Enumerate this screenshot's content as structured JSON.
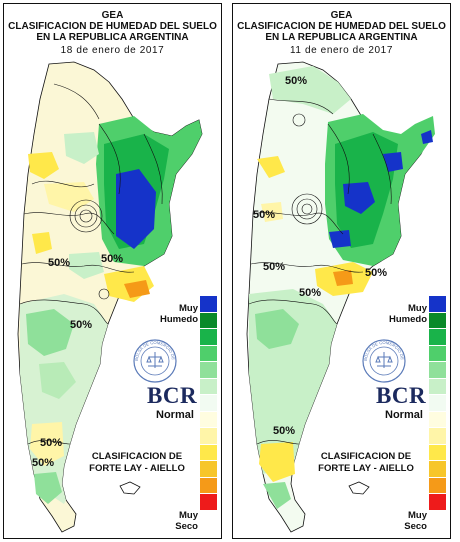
{
  "panels": [
    {
      "title_line1": "GEA",
      "title_line2": "CLASIFICACION DE HUMEDAD DEL SUELO",
      "title_line3": "EN LA REPUBLICA ARGENTINA",
      "date": "18 de enero de 2017",
      "contour_labels": [
        "50%",
        "50%",
        "50%",
        "50%",
        "50%"
      ],
      "legend_top": "Muy\nHumedo",
      "legend_mid": "Normal",
      "legend_bottom": "Muy\nSeco",
      "brand": "BCR",
      "seal_text": "BOLSA DE COMERCIO DE ROSARIO",
      "classification": "CLASIFICACION DE\nFORTE LAY - AIELLO"
    },
    {
      "title_line1": "GEA",
      "title_line2": "CLASIFICACION DE HUMEDAD DEL SUELO",
      "title_line3": "EN LA REPUBLICA ARGENTINA",
      "date": "11 de enero de 2017",
      "contour_labels": [
        "50%",
        "50%",
        "50%",
        "50%",
        "50%",
        "50%"
      ],
      "legend_top": "Muy\nHumedo",
      "legend_mid": "Normal",
      "legend_bottom": "Muy\nSeco",
      "brand": "BCR",
      "seal_text": "BOLSA DE COMERCIO DE ROSARIO",
      "classification": "CLASIFICACION DE\nFORTE LAY - AIELLO"
    }
  ],
  "legend_colors": [
    "#1533c9",
    "#0a8a2a",
    "#19b34a",
    "#4fcf6b",
    "#8fe09a",
    "#c8f0c8",
    "#f2fbf2",
    "#fffde0",
    "#fff5a8",
    "#ffe84a",
    "#f7c62a",
    "#f59a18",
    "#ee1b1b"
  ]
}
